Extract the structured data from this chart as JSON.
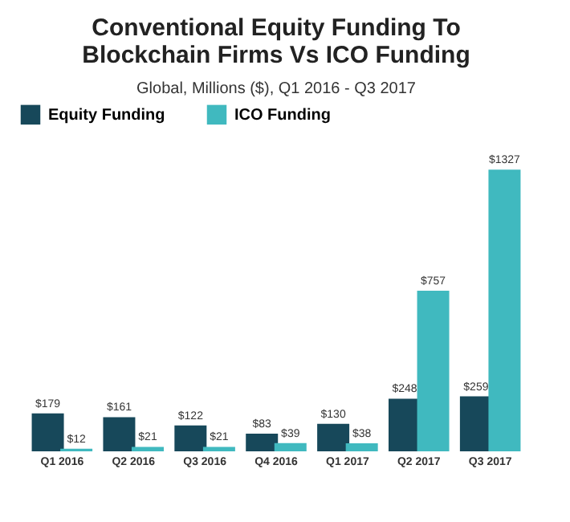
{
  "chart_data": {
    "type": "bar",
    "title": "Conventional Equity Funding To Blockchain Firms Vs ICO Funding",
    "subtitle": "Global, Millions ($), Q1 2016 - Q3 2017",
    "categories": [
      "Q1 2016",
      "Q2 2016",
      "Q3 2016",
      "Q4 2016",
      "Q1 2017",
      "Q2 2017",
      "Q3 2017"
    ],
    "series": [
      {
        "name": "Equity Funding",
        "color": "#17485a",
        "values": [
          179,
          161,
          122,
          83,
          130,
          248,
          259
        ],
        "value_labels": [
          "$179",
          "$161",
          "$122",
          "$83",
          "$130",
          "$248",
          "$259"
        ]
      },
      {
        "name": "ICO Funding",
        "color": "#40b9bf",
        "values": [
          12,
          21,
          21,
          39,
          38,
          757,
          1327
        ],
        "value_labels": [
          "$12",
          "$21",
          "$21",
          "$39",
          "$38",
          "$757",
          "$1327"
        ]
      }
    ],
    "legend": "top",
    "grid": false
  }
}
